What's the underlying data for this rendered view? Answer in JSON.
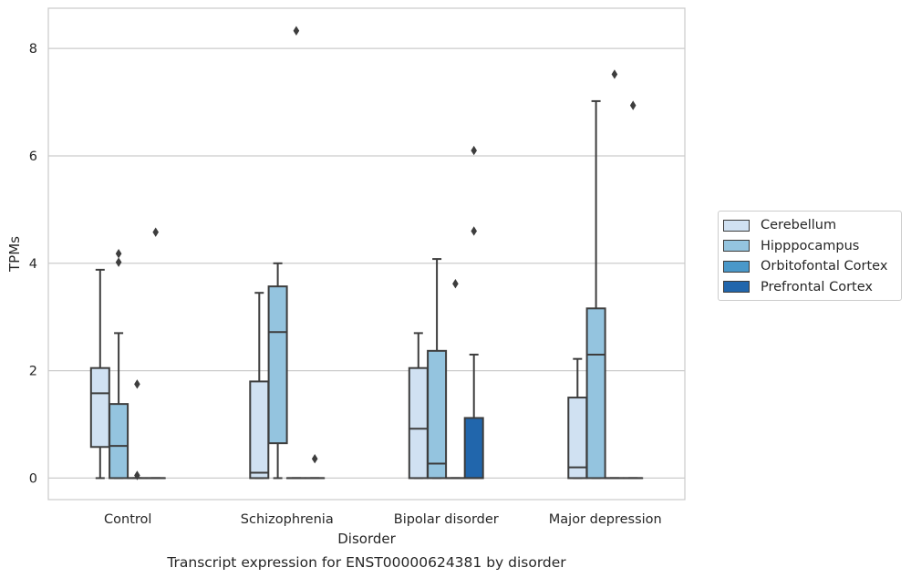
{
  "chart_data": {
    "type": "box",
    "title": "Transcript expression for ENST00000624381 by disorder",
    "xlabel": "Disorder",
    "ylabel": "TPMs",
    "categories": [
      "Control",
      "Schizophrenia",
      "Bipolar disorder",
      "Major depression"
    ],
    "ylim": [
      -0.4,
      8.75
    ],
    "yticks": [
      0,
      2,
      4,
      6,
      8
    ],
    "grid": "horizontal",
    "legend_position": "right",
    "series": [
      {
        "name": "Cerebellum",
        "color": "#d0e1f2",
        "boxes": [
          {
            "whislo": 0,
            "q1": 0.58,
            "med": 1.58,
            "q3": 2.05,
            "whishi": 3.88,
            "fliers": []
          },
          {
            "whislo": 0,
            "q1": 0,
            "med": 0.1,
            "q3": 1.8,
            "whishi": 3.45,
            "fliers": []
          },
          {
            "whislo": 0,
            "q1": 0,
            "med": 0.92,
            "q3": 2.05,
            "whishi": 2.7,
            "fliers": []
          },
          {
            "whislo": 0,
            "q1": 0,
            "med": 0.2,
            "q3": 1.5,
            "whishi": 2.22,
            "fliers": []
          }
        ]
      },
      {
        "name": "Hipppocampus",
        "color": "#94c4df",
        "boxes": [
          {
            "whislo": 0,
            "q1": 0,
            "med": 0.6,
            "q3": 1.38,
            "whishi": 2.7,
            "fliers": [
              4.02,
              4.18
            ]
          },
          {
            "whislo": 0,
            "q1": 0.65,
            "med": 2.72,
            "q3": 3.57,
            "whishi": 4.0,
            "fliers": []
          },
          {
            "whislo": 0,
            "q1": 0,
            "med": 0.27,
            "q3": 2.37,
            "whishi": 4.08,
            "fliers": []
          },
          {
            "whislo": 0,
            "q1": 0,
            "med": 2.3,
            "q3": 3.16,
            "whishi": 7.02,
            "fliers": []
          }
        ]
      },
      {
        "name": "Orbitofontal Cortex",
        "color": "#4a98c9",
        "boxes": [
          {
            "whislo": 0,
            "q1": 0,
            "med": 0,
            "q3": 0,
            "whishi": 0,
            "fliers": [
              0.05,
              1.75
            ]
          },
          {
            "whislo": 0,
            "q1": 0,
            "med": 0,
            "q3": 0,
            "whishi": 0,
            "fliers": [
              8.33
            ]
          },
          {
            "whislo": 0,
            "q1": 0,
            "med": 0,
            "q3": 0,
            "whishi": 0,
            "fliers": [
              3.62
            ]
          },
          {
            "whislo": 0,
            "q1": 0,
            "med": 0,
            "q3": 0,
            "whishi": 0,
            "fliers": [
              7.52
            ]
          }
        ]
      },
      {
        "name": "Prefrontal Cortex",
        "color": "#2166ac",
        "boxes": [
          {
            "whislo": 0,
            "q1": 0,
            "med": 0,
            "q3": 0,
            "whishi": 0,
            "fliers": [
              4.58
            ]
          },
          {
            "whislo": 0,
            "q1": 0,
            "med": 0,
            "q3": 0,
            "whishi": 0,
            "fliers": [
              0.36
            ]
          },
          {
            "whislo": 0,
            "q1": 0,
            "med": 0,
            "q3": 1.12,
            "whishi": 2.3,
            "fliers": [
              6.1,
              4.6
            ]
          },
          {
            "whislo": 0,
            "q1": 0,
            "med": 0,
            "q3": 0,
            "whishi": 0,
            "fliers": [
              6.94
            ]
          }
        ]
      }
    ]
  }
}
